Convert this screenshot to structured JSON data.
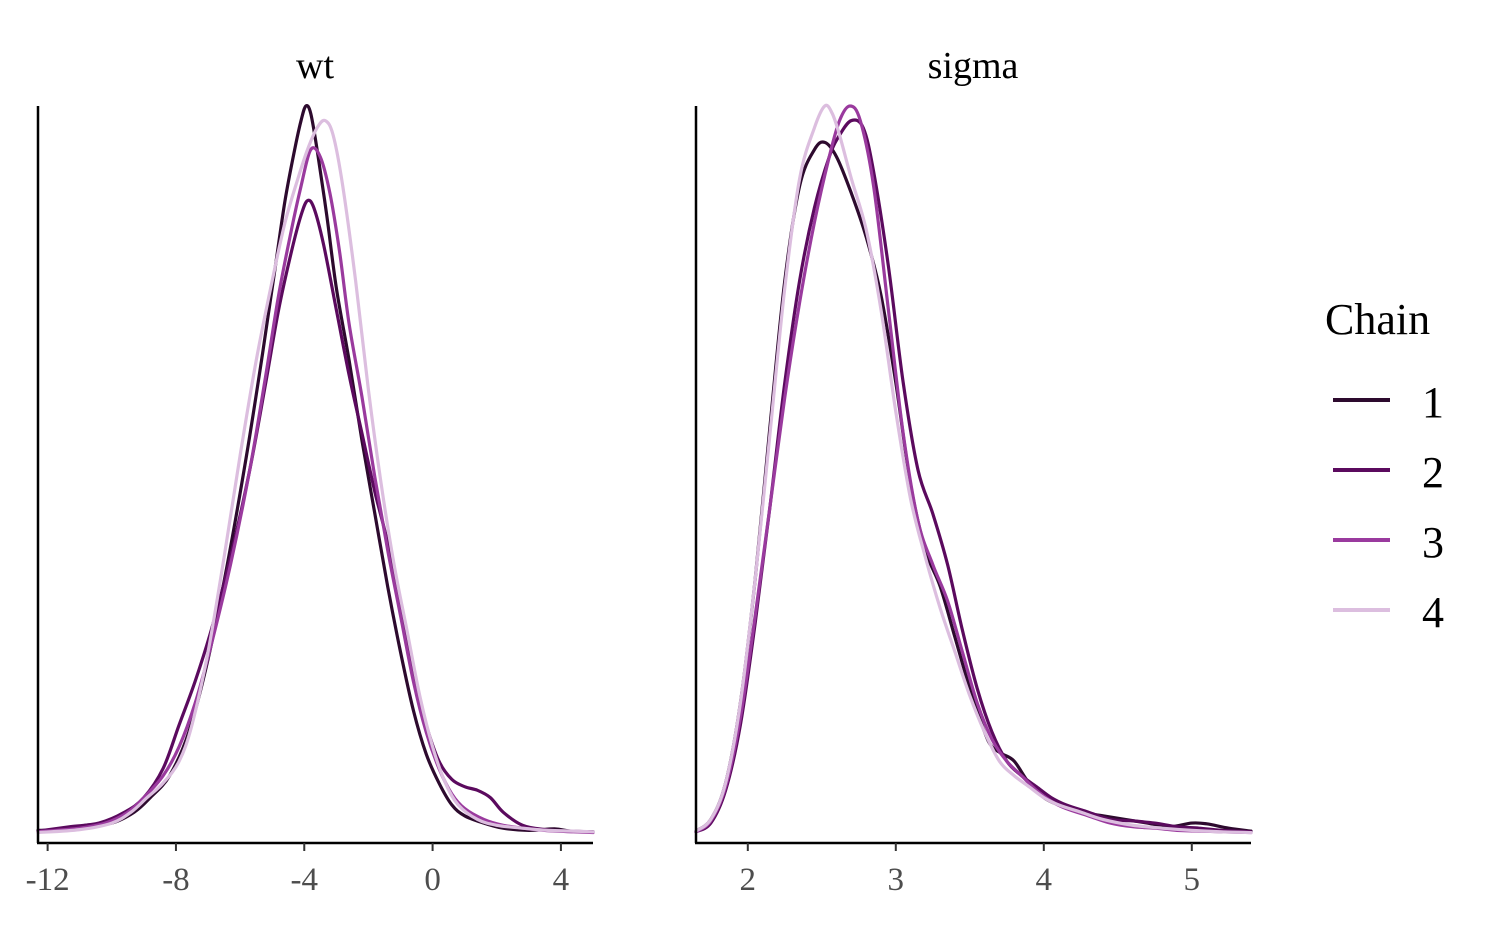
{
  "chart_data": {
    "type": "line",
    "legend": {
      "title": "Chain",
      "position": "right"
    },
    "series_colors": {
      "1": "#2d0a2e",
      "2": "#5b0a5e",
      "3": "#9a3a9e",
      "4": "#dcbedf"
    },
    "panels": [
      {
        "title": "wt",
        "xlim": [
          -12.3,
          5.0
        ],
        "ylim": [
          0,
          1.0
        ],
        "xticks": [
          -12,
          -8,
          -4,
          0,
          4
        ],
        "xtick_labels": [
          "-12",
          "-8",
          "-4",
          "0",
          "4"
        ],
        "series": [
          {
            "name": "1",
            "x": [
              -12.3,
              -11.5,
              -10.8,
              -10.0,
              -9.3,
              -8.8,
              -8.2,
              -7.6,
              -7.0,
              -6.4,
              -5.8,
              -5.3,
              -4.9,
              -4.6,
              -4.3,
              -4.1,
              -3.95,
              -3.8,
              -3.6,
              -3.3,
              -3.0,
              -2.6,
              -2.2,
              -1.8,
              -1.4,
              -1.0,
              -0.6,
              -0.2,
              0.2,
              0.6,
              1.0,
              1.6,
              2.2,
              3.0,
              3.8,
              4.3,
              5.0
            ],
            "y": [
              0.005,
              0.006,
              0.012,
              0.015,
              0.03,
              0.05,
              0.08,
              0.14,
              0.24,
              0.37,
              0.52,
              0.66,
              0.78,
              0.87,
              0.94,
              0.98,
              1.0,
              0.99,
              0.94,
              0.85,
              0.75,
              0.65,
              0.54,
              0.44,
              0.34,
              0.25,
              0.17,
              0.11,
              0.07,
              0.04,
              0.025,
              0.015,
              0.008,
              0.005,
              0.007,
              0.004,
              0.003
            ]
          },
          {
            "name": "2",
            "x": [
              -12.3,
              -11.3,
              -10.4,
              -9.6,
              -9.0,
              -8.4,
              -7.9,
              -7.4,
              -6.9,
              -6.3,
              -5.7,
              -5.2,
              -4.8,
              -4.4,
              -4.1,
              -3.9,
              -3.7,
              -3.4,
              -3.0,
              -2.6,
              -2.2,
              -1.8,
              -1.4,
              -1.0,
              -0.6,
              -0.2,
              0.2,
              0.6,
              1.0,
              1.4,
              1.8,
              2.2,
              2.8,
              3.5,
              4.2,
              5.0
            ],
            "y": [
              0.004,
              0.01,
              0.015,
              0.03,
              0.05,
              0.09,
              0.15,
              0.21,
              0.28,
              0.38,
              0.5,
              0.62,
              0.72,
              0.8,
              0.85,
              0.87,
              0.86,
              0.81,
              0.72,
              0.63,
              0.55,
              0.47,
              0.4,
              0.31,
              0.22,
              0.15,
              0.1,
              0.075,
              0.065,
              0.06,
              0.05,
              0.03,
              0.012,
              0.006,
              0.004,
              0.003
            ]
          },
          {
            "name": "3",
            "x": [
              -12.3,
              -11.0,
              -10.2,
              -9.5,
              -9.0,
              -8.4,
              -7.9,
              -7.4,
              -6.9,
              -6.3,
              -5.7,
              -5.2,
              -4.8,
              -4.4,
              -4.1,
              -3.8,
              -3.5,
              -3.2,
              -2.9,
              -2.6,
              -2.2,
              -1.8,
              -1.4,
              -1.0,
              -0.6,
              -0.2,
              0.2,
              0.6,
              1.0,
              1.6,
              2.2,
              3.0,
              3.8,
              4.4,
              5.0
            ],
            "y": [
              0.003,
              0.008,
              0.015,
              0.03,
              0.05,
              0.08,
              0.12,
              0.18,
              0.26,
              0.37,
              0.5,
              0.63,
              0.74,
              0.83,
              0.89,
              0.94,
              0.93,
              0.88,
              0.8,
              0.7,
              0.6,
              0.49,
              0.39,
              0.3,
              0.21,
              0.14,
              0.09,
              0.055,
              0.035,
              0.02,
              0.012,
              0.007,
              0.004,
              0.003,
              0.002
            ]
          },
          {
            "name": "4",
            "x": [
              -12.3,
              -11.0,
              -10.0,
              -9.4,
              -8.9,
              -8.4,
              -7.9,
              -7.5,
              -7.0,
              -6.5,
              -6.0,
              -5.5,
              -5.0,
              -4.6,
              -4.2,
              -3.9,
              -3.6,
              -3.35,
              -3.1,
              -2.8,
              -2.4,
              -2.0,
              -1.6,
              -1.2,
              -0.8,
              -0.4,
              0.0,
              0.4,
              0.8,
              1.4,
              2.0,
              2.8,
              3.6,
              4.4,
              5.0
            ],
            "y": [
              0.002,
              0.006,
              0.015,
              0.03,
              0.05,
              0.07,
              0.1,
              0.15,
              0.25,
              0.38,
              0.52,
              0.65,
              0.76,
              0.84,
              0.9,
              0.94,
              0.97,
              0.98,
              0.96,
              0.89,
              0.76,
              0.61,
              0.48,
              0.37,
              0.28,
              0.19,
              0.12,
              0.07,
              0.04,
              0.02,
              0.012,
              0.008,
              0.005,
              0.004,
              0.003
            ]
          }
        ]
      },
      {
        "title": "sigma",
        "xlim": [
          1.65,
          5.4
        ],
        "ylim": [
          0,
          1.0
        ],
        "xticks": [
          2,
          3,
          4,
          5
        ],
        "xtick_labels": [
          "2",
          "3",
          "4",
          "5"
        ],
        "series": [
          {
            "name": "1",
            "x": [
              1.65,
              1.75,
              1.85,
              1.95,
              2.05,
              2.15,
              2.25,
              2.35,
              2.45,
              2.52,
              2.6,
              2.7,
              2.8,
              2.9,
              3.0,
              3.1,
              3.2,
              3.3,
              3.4,
              3.5,
              3.6,
              3.65,
              3.72,
              3.8,
              3.9,
              4.0,
              4.1,
              4.25,
              4.4,
              4.55,
              4.7,
              4.85,
              5.0,
              5.1,
              5.25,
              5.4
            ],
            "y": [
              0.004,
              0.02,
              0.07,
              0.18,
              0.35,
              0.56,
              0.76,
              0.89,
              0.94,
              0.95,
              0.93,
              0.88,
              0.82,
              0.74,
              0.62,
              0.48,
              0.39,
              0.34,
              0.27,
              0.2,
              0.14,
              0.12,
              0.11,
              0.1,
              0.07,
              0.05,
              0.04,
              0.03,
              0.025,
              0.02,
              0.015,
              0.01,
              0.015,
              0.014,
              0.008,
              0.004
            ]
          },
          {
            "name": "2",
            "x": [
              1.65,
              1.75,
              1.85,
              1.95,
              2.05,
              2.15,
              2.25,
              2.35,
              2.45,
              2.55,
              2.62,
              2.7,
              2.78,
              2.85,
              2.95,
              3.05,
              3.15,
              3.25,
              3.35,
              3.45,
              3.55,
              3.65,
              3.75,
              3.85,
              3.95,
              4.05,
              4.15,
              4.3,
              4.45,
              4.6,
              4.75,
              4.9,
              5.05,
              5.2,
              5.4
            ],
            "y": [
              0.003,
              0.015,
              0.06,
              0.15,
              0.29,
              0.45,
              0.62,
              0.76,
              0.86,
              0.93,
              0.96,
              0.98,
              0.97,
              0.91,
              0.78,
              0.62,
              0.5,
              0.44,
              0.37,
              0.28,
              0.2,
              0.14,
              0.1,
              0.08,
              0.065,
              0.05,
              0.04,
              0.03,
              0.02,
              0.018,
              0.015,
              0.01,
              0.008,
              0.005,
              0.003
            ]
          },
          {
            "name": "3",
            "x": [
              1.65,
              1.75,
              1.85,
              1.95,
              2.05,
              2.15,
              2.25,
              2.35,
              2.45,
              2.55,
              2.62,
              2.69,
              2.76,
              2.85,
              2.95,
              3.05,
              3.15,
              3.25,
              3.35,
              3.45,
              3.55,
              3.65,
              3.75,
              3.85,
              3.95,
              4.05,
              4.15,
              4.3,
              4.45,
              4.6,
              4.75,
              4.9,
              5.05,
              5.2,
              5.4
            ],
            "y": [
              0.003,
              0.018,
              0.065,
              0.16,
              0.3,
              0.45,
              0.6,
              0.73,
              0.84,
              0.93,
              0.98,
              1.0,
              0.98,
              0.89,
              0.72,
              0.55,
              0.43,
              0.37,
              0.32,
              0.25,
              0.18,
              0.13,
              0.1,
              0.08,
              0.06,
              0.045,
              0.035,
              0.025,
              0.015,
              0.01,
              0.008,
              0.005,
              0.004,
              0.003,
              0.002
            ]
          },
          {
            "name": "4",
            "x": [
              1.65,
              1.75,
              1.85,
              1.95,
              2.05,
              2.15,
              2.25,
              2.35,
              2.45,
              2.52,
              2.57,
              2.62,
              2.7,
              2.8,
              2.9,
              3.0,
              3.1,
              3.2,
              3.3,
              3.4,
              3.5,
              3.6,
              3.7,
              3.8,
              3.9,
              4.0,
              4.1,
              4.25,
              4.4,
              4.6,
              4.8,
              5.0,
              5.2,
              5.4
            ],
            "y": [
              0.004,
              0.02,
              0.07,
              0.18,
              0.35,
              0.55,
              0.75,
              0.9,
              0.97,
              1.0,
              0.99,
              0.96,
              0.9,
              0.83,
              0.72,
              0.58,
              0.46,
              0.38,
              0.31,
              0.25,
              0.19,
              0.14,
              0.1,
              0.08,
              0.065,
              0.05,
              0.04,
              0.03,
              0.02,
              0.012,
              0.008,
              0.005,
              0.003,
              0.002
            ]
          }
        ]
      }
    ]
  }
}
